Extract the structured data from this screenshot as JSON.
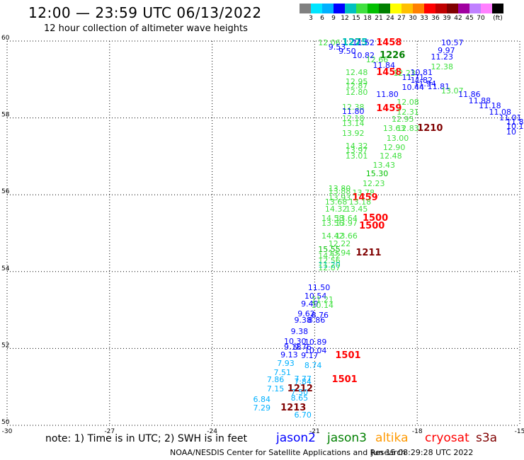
{
  "header": {
    "title": "12:00 — 23:59 UTC 06/13/2022",
    "subtitle": "12 hour collection of altimeter wave heights"
  },
  "colorbar": {
    "colors": [
      "#808080",
      "#00e5ff",
      "#00b0ff",
      "#0000ff",
      "#00c0c0",
      "#40e040",
      "#00c000",
      "#008000",
      "#ffff00",
      "#ffc000",
      "#ff8000",
      "#ff0000",
      "#c00000",
      "#800000",
      "#a000a0",
      "#c080ff",
      "#ff80ff",
      "#000000"
    ],
    "labels": [
      "3",
      "6",
      "9",
      "12",
      "15",
      "18",
      "21",
      "24",
      "27",
      "30",
      "33",
      "36",
      "39",
      "42",
      "45",
      "70",
      "(ft)"
    ]
  },
  "axes": {
    "lon_ticks": [
      "-30",
      "-27",
      "-24",
      "-21",
      "-18",
      "-15"
    ],
    "lat_ticks": [
      "60",
      "58",
      "56",
      "54",
      "52",
      "50"
    ],
    "lon_range": [
      -30,
      -15
    ],
    "lat_range": [
      50,
      60
    ]
  },
  "observations": [
    {
      "text": "12.06",
      "lon": -20.9,
      "lat": 59.95,
      "color": "#40e040"
    },
    {
      "text": "1275",
      "lon": -20.2,
      "lat": 59.95,
      "color": "#008000",
      "bold": true
    },
    {
      "text": "1225",
      "lon": -20.2,
      "lat": 59.95,
      "color": "#00c0c0",
      "bold": true
    },
    {
      "text": "11.52",
      "lon": -19.9,
      "lat": 59.95,
      "color": "#0000ff"
    },
    {
      "text": "1458",
      "lon": -19.2,
      "lat": 59.95,
      "color": "#ff0000",
      "bold": true
    },
    {
      "text": "10.57",
      "lon": -17.3,
      "lat": 59.95,
      "color": "#0000ff"
    },
    {
      "text": "9.53",
      "lon": -20.6,
      "lat": 59.84,
      "color": "#0000ff"
    },
    {
      "text": "9.50",
      "lon": -20.3,
      "lat": 59.72,
      "color": "#0000ff"
    },
    {
      "text": "9.97",
      "lon": -17.4,
      "lat": 59.75,
      "color": "#0000ff"
    },
    {
      "text": "10.82",
      "lon": -19.9,
      "lat": 59.62,
      "color": "#0000ff"
    },
    {
      "text": "1226",
      "lon": -19.1,
      "lat": 59.62,
      "color": "#008000",
      "bold": true
    },
    {
      "text": "11.23",
      "lon": -17.6,
      "lat": 59.58,
      "color": "#0000ff"
    },
    {
      "text": "12.66",
      "lon": -19.5,
      "lat": 59.5,
      "color": "#40e040"
    },
    {
      "text": "11.84",
      "lon": -19.3,
      "lat": 59.36,
      "color": "#0000ff"
    },
    {
      "text": "12.38",
      "lon": -17.6,
      "lat": 59.32,
      "color": "#40e040"
    },
    {
      "text": "12.48",
      "lon": -20.1,
      "lat": 59.18,
      "color": "#40e040"
    },
    {
      "text": "1458",
      "lon": -19.2,
      "lat": 59.18,
      "color": "#ff0000",
      "bold": true
    },
    {
      "text": "12.23",
      "lon": -18.7,
      "lat": 59.15,
      "color": "#40e040"
    },
    {
      "text": "10.81",
      "lon": -18.2,
      "lat": 59.18,
      "color": "#0000ff"
    },
    {
      "text": "11.71",
      "lon": -18.45,
      "lat": 59.05,
      "color": "#0000ff"
    },
    {
      "text": "12.95",
      "lon": -20.1,
      "lat": 58.94,
      "color": "#40e040"
    },
    {
      "text": "11.82",
      "lon": -18.2,
      "lat": 58.96,
      "color": "#0000ff"
    },
    {
      "text": "11.94",
      "lon": -18.1,
      "lat": 58.88,
      "color": "#0000ff"
    },
    {
      "text": "12.87",
      "lon": -20.1,
      "lat": 58.82,
      "color": "#40e040"
    },
    {
      "text": "10.44",
      "lon": -18.45,
      "lat": 58.78,
      "color": "#0000ff"
    },
    {
      "text": "11.81",
      "lon": -17.7,
      "lat": 58.8,
      "color": "#0000ff"
    },
    {
      "text": "13.07",
      "lon": -17.3,
      "lat": 58.7,
      "color": "#40e040"
    },
    {
      "text": "12.80",
      "lon": -20.1,
      "lat": 58.66,
      "color": "#40e040"
    },
    {
      "text": "11.80",
      "lon": -19.2,
      "lat": 58.6,
      "color": "#0000ff"
    },
    {
      "text": "11.86",
      "lon": -16.8,
      "lat": 58.6,
      "color": "#0000ff"
    },
    {
      "text": "11.88",
      "lon": -16.5,
      "lat": 58.44,
      "color": "#0000ff"
    },
    {
      "text": "12.08",
      "lon": -18.6,
      "lat": 58.4,
      "color": "#40e040"
    },
    {
      "text": "11.18",
      "lon": -16.2,
      "lat": 58.3,
      "color": "#0000ff"
    },
    {
      "text": "12.38",
      "lon": -20.2,
      "lat": 58.26,
      "color": "#40e040"
    },
    {
      "text": "1459",
      "lon": -19.2,
      "lat": 58.24,
      "color": "#ff0000",
      "bold": true
    },
    {
      "text": "11.80",
      "lon": -20.2,
      "lat": 58.16,
      "color": "#0000ff"
    },
    {
      "text": "12.31",
      "lon": -18.6,
      "lat": 58.14,
      "color": "#40e040"
    },
    {
      "text": "11.08",
      "lon": -15.9,
      "lat": 58.14,
      "color": "#0000ff"
    },
    {
      "text": "12.18",
      "lon": -20.2,
      "lat": 57.98,
      "color": "#40e040"
    },
    {
      "text": "12.95",
      "lon": -18.75,
      "lat": 57.96,
      "color": "#40e040"
    },
    {
      "text": "11.01",
      "lon": -15.6,
      "lat": 58.0,
      "color": "#0000ff"
    },
    {
      "text": "13.14",
      "lon": -20.2,
      "lat": 57.84,
      "color": "#40e040"
    },
    {
      "text": "11.89",
      "lon": -15.3,
      "lat": 57.88,
      "color": "#0000ff"
    },
    {
      "text": "13.63",
      "lon": -19.0,
      "lat": 57.72,
      "color": "#40e040"
    },
    {
      "text": "12.83",
      "lon": -18.6,
      "lat": 57.72,
      "color": "#40e040"
    },
    {
      "text": "1210",
      "lon": -18.0,
      "lat": 57.72,
      "color": "#800000",
      "bold": true
    },
    {
      "text": "10.10",
      "lon": -15.15,
      "lat": 57.78,
      "color": "#0000ff"
    },
    {
      "text": "10",
      "lon": -14.9,
      "lat": 57.62,
      "color": "#0000ff"
    },
    {
      "text": "13.92",
      "lon": -20.2,
      "lat": 57.58,
      "color": "#40e040"
    },
    {
      "text": "13.00",
      "lon": -18.9,
      "lat": 57.46,
      "color": "#40e040"
    },
    {
      "text": "14.32",
      "lon": -20.1,
      "lat": 57.26,
      "color": "#40e040"
    },
    {
      "text": "12.90",
      "lon": -19.0,
      "lat": 57.22,
      "color": "#40e040"
    },
    {
      "text": "13.97",
      "lon": -20.1,
      "lat": 57.14,
      "color": "#40e040"
    },
    {
      "text": "13.01",
      "lon": -20.1,
      "lat": 57.0,
      "color": "#40e040"
    },
    {
      "text": "12.48",
      "lon": -19.1,
      "lat": 57.0,
      "color": "#40e040"
    },
    {
      "text": "13.43",
      "lon": -19.3,
      "lat": 56.76,
      "color": "#40e040"
    },
    {
      "text": "15.30",
      "lon": -19.5,
      "lat": 56.54,
      "color": "#00c000"
    },
    {
      "text": "12.23",
      "lon": -19.6,
      "lat": 56.28,
      "color": "#40e040"
    },
    {
      "text": "13.80",
      "lon": -20.6,
      "lat": 56.16,
      "color": "#40e040"
    },
    {
      "text": "13.88",
      "lon": -20.6,
      "lat": 56.08,
      "color": "#40e040"
    },
    {
      "text": "13.78",
      "lon": -19.9,
      "lat": 56.04,
      "color": "#40e040"
    },
    {
      "text": "13.93",
      "lon": -20.6,
      "lat": 55.92,
      "color": "#40e040"
    },
    {
      "text": "1459",
      "lon": -19.9,
      "lat": 55.92,
      "color": "#ff0000",
      "bold": true
    },
    {
      "text": "13.68",
      "lon": -20.7,
      "lat": 55.8,
      "color": "#40e040"
    },
    {
      "text": "13.18",
      "lon": -20.0,
      "lat": 55.8,
      "color": "#40e040"
    },
    {
      "text": "14.32",
      "lon": -20.7,
      "lat": 55.62,
      "color": "#40e040"
    },
    {
      "text": "13.45",
      "lon": -20.1,
      "lat": 55.62,
      "color": "#40e040"
    },
    {
      "text": "14.58",
      "lon": -20.8,
      "lat": 55.38,
      "color": "#40e040"
    },
    {
      "text": "13.64",
      "lon": -20.4,
      "lat": 55.38,
      "color": "#40e040"
    },
    {
      "text": "1500",
      "lon": -19.6,
      "lat": 55.38,
      "color": "#ff0000",
      "bold": true
    },
    {
      "text": "13.56",
      "lon": -20.8,
      "lat": 55.24,
      "color": "#40e040"
    },
    {
      "text": "13.97",
      "lon": -20.4,
      "lat": 55.24,
      "color": "#40e040"
    },
    {
      "text": "1500",
      "lon": -19.7,
      "lat": 55.18,
      "color": "#ff0000",
      "bold": true
    },
    {
      "text": "14.42",
      "lon": -20.8,
      "lat": 54.92,
      "color": "#40e040"
    },
    {
      "text": "13.66",
      "lon": -20.4,
      "lat": 54.92,
      "color": "#40e040"
    },
    {
      "text": "12.22",
      "lon": -20.6,
      "lat": 54.72,
      "color": "#40e040"
    },
    {
      "text": "15.55",
      "lon": -20.9,
      "lat": 54.56,
      "color": "#00c000"
    },
    {
      "text": "13.94",
      "lon": -20.6,
      "lat": 54.48,
      "color": "#40e040"
    },
    {
      "text": "1211",
      "lon": -19.8,
      "lat": 54.48,
      "color": "#800000",
      "bold": true
    },
    {
      "text": "14.12",
      "lon": -20.9,
      "lat": 54.4,
      "color": "#40e040"
    },
    {
      "text": "12.56",
      "lon": -20.9,
      "lat": 54.28,
      "color": "#40e040"
    },
    {
      "text": "11.20",
      "lon": -20.9,
      "lat": 54.16,
      "color": "#00c0c0"
    },
    {
      "text": "12.07",
      "lon": -20.9,
      "lat": 54.08,
      "color": "#40e040"
    },
    {
      "text": "11.50",
      "lon": -21.2,
      "lat": 53.58,
      "color": "#0000ff"
    },
    {
      "text": "10.54",
      "lon": -21.3,
      "lat": 53.36,
      "color": "#0000ff"
    },
    {
      "text": "11.21",
      "lon": -21.1,
      "lat": 53.26,
      "color": "#40e040"
    },
    {
      "text": "9.49",
      "lon": -21.4,
      "lat": 53.14,
      "color": "#0000ff"
    },
    {
      "text": "10.14",
      "lon": -21.1,
      "lat": 53.12,
      "color": "#40e040"
    },
    {
      "text": "9.62",
      "lon": -21.5,
      "lat": 52.9,
      "color": "#0000ff"
    },
    {
      "text": "8.76",
      "lon": -21.1,
      "lat": 52.86,
      "color": "#0000ff"
    },
    {
      "text": "9.38",
      "lon": -21.6,
      "lat": 52.72,
      "color": "#0000ff"
    },
    {
      "text": "8.86",
      "lon": -21.2,
      "lat": 52.72,
      "color": "#0000ff"
    },
    {
      "text": "9.38",
      "lon": -21.7,
      "lat": 52.44,
      "color": "#0000ff"
    },
    {
      "text": "10.30",
      "lon": -21.9,
      "lat": 52.18,
      "color": "#0000ff"
    },
    {
      "text": "10.89",
      "lon": -21.3,
      "lat": 52.16,
      "color": "#0000ff"
    },
    {
      "text": "9.18",
      "lon": -21.9,
      "lat": 52.02,
      "color": "#0000ff"
    },
    {
      "text": "9.76",
      "lon": -21.6,
      "lat": 52.02,
      "color": "#0000ff"
    },
    {
      "text": "10.04",
      "lon": -21.3,
      "lat": 51.94,
      "color": "#0000ff"
    },
    {
      "text": "9.13",
      "lon": -22.0,
      "lat": 51.82,
      "color": "#0000ff"
    },
    {
      "text": "9.17",
      "lon": -21.4,
      "lat": 51.8,
      "color": "#0000ff"
    },
    {
      "text": "1501",
      "lon": -20.4,
      "lat": 51.8,
      "color": "#ff0000",
      "bold": true
    },
    {
      "text": "7.93",
      "lon": -22.1,
      "lat": 51.6,
      "color": "#00b0ff"
    },
    {
      "text": "8.74",
      "lon": -21.3,
      "lat": 51.54,
      "color": "#00b0ff"
    },
    {
      "text": "7.51",
      "lon": -22.2,
      "lat": 51.36,
      "color": "#00b0ff"
    },
    {
      "text": "7.86",
      "lon": -22.4,
      "lat": 51.18,
      "color": "#00b0ff"
    },
    {
      "text": "7.77",
      "lon": -21.6,
      "lat": 51.2,
      "color": "#00b0ff"
    },
    {
      "text": "7.84",
      "lon": -21.6,
      "lat": 51.12,
      "color": "#00b0ff"
    },
    {
      "text": "1501",
      "lon": -20.5,
      "lat": 51.18,
      "color": "#ff0000",
      "bold": true
    },
    {
      "text": "7.15",
      "lon": -22.4,
      "lat": 50.94,
      "color": "#00b0ff"
    },
    {
      "text": "1212",
      "lon": -21.8,
      "lat": 50.94,
      "color": "#800000",
      "bold": true
    },
    {
      "text": "7.50",
      "lon": -21.7,
      "lat": 50.84,
      "color": "#00b0ff"
    },
    {
      "text": "8.65",
      "lon": -21.7,
      "lat": 50.7,
      "color": "#00b0ff"
    },
    {
      "text": "6.84",
      "lon": -22.8,
      "lat": 50.66,
      "color": "#00b0ff"
    },
    {
      "text": "7.29",
      "lon": -22.8,
      "lat": 50.44,
      "color": "#00b0ff"
    },
    {
      "text": "1213",
      "lon": -22.0,
      "lat": 50.44,
      "color": "#800000",
      "bold": true
    },
    {
      "text": "6.70",
      "lon": -21.6,
      "lat": 50.26,
      "color": "#00b0ff"
    }
  ],
  "legend": {
    "note": "note: 1) Time is in UTC; 2) SWH is in feet",
    "satellites": [
      {
        "name": "jason2",
        "color": "#0000ff"
      },
      {
        "name": "jason3",
        "color": "#008000"
      },
      {
        "name": "altika",
        "color": "#ff9900"
      },
      {
        "name": "cryosat",
        "color": "#ff0000"
      },
      {
        "name": "s3a",
        "color": "#800000"
      }
    ]
  },
  "footer": {
    "credit": "NOAA/NESDIS Center for Satellite Applications and Research",
    "timestamp": "Jun 15 08:29:28 UTC 2022"
  }
}
